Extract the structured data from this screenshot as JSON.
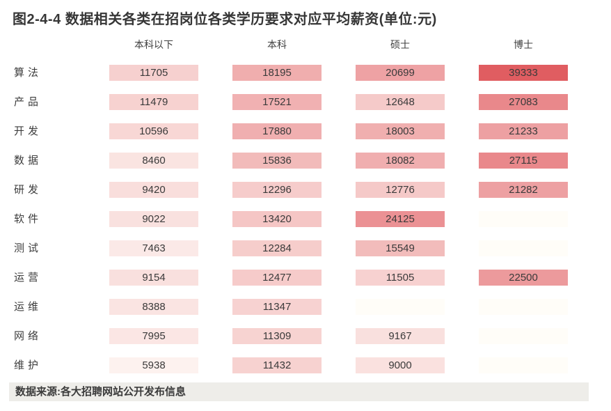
{
  "title": "图2-4-4 数据相关各类在招岗位各类学历要求对应平均薪资(单位:元)",
  "source_note": "数据来源:各大招聘网站公开发布信息",
  "colors": {
    "background": "#ffffff",
    "title_text": "#363636",
    "header_text": "#3f3f3f",
    "label_text": "#3d3d3d",
    "cell_text": "#3a3a3a",
    "source_bar_background": "#eeede9",
    "source_text": "#3b3b3b",
    "heat_min": "#fffdf8",
    "heat_max": "#e05d61"
  },
  "chart_data": {
    "type": "heatmap",
    "title": "图2-4-4 数据相关各类在招岗位各类学历要求对应平均薪资(单位:元)",
    "unit": "元",
    "columns": [
      "本科以下",
      "本科",
      "硕士",
      "博士"
    ],
    "rows": [
      "算法",
      "产品",
      "开发",
      "数据",
      "研发",
      "软件",
      "测试",
      "运营",
      "运维",
      "网络",
      "维护"
    ],
    "values": [
      [
        11705,
        18195,
        20699,
        39333
      ],
      [
        11479,
        17521,
        12648,
        27083
      ],
      [
        10596,
        17880,
        18003,
        21233
      ],
      [
        8460,
        15836,
        18082,
        27115
      ],
      [
        9420,
        12296,
        12776,
        21282
      ],
      [
        9022,
        13420,
        24125,
        null
      ],
      [
        7463,
        12284,
        15549,
        null
      ],
      [
        9154,
        12477,
        11505,
        22500
      ],
      [
        8388,
        11347,
        null,
        null
      ],
      [
        7995,
        11309,
        9167,
        null
      ],
      [
        5938,
        11432,
        9000,
        null
      ]
    ],
    "value_range": [
      0,
      39333
    ],
    "legend": "none",
    "grid": false,
    "colormap": {
      "stops": [
        [
          0,
          "#fffdf8"
        ],
        [
          5500,
          "#fdf4f1"
        ],
        [
          9500,
          "#f9dedc"
        ],
        [
          13000,
          "#f5c8c7"
        ],
        [
          16000,
          "#f2bab9"
        ],
        [
          18500,
          "#f0acad"
        ],
        [
          21500,
          "#ed9fa1"
        ],
        [
          24500,
          "#eb8f92"
        ],
        [
          27500,
          "#e9878a"
        ],
        [
          39333,
          "#e05d61"
        ]
      ]
    },
    "source_note": "数据来源:各大招聘网站公开发布信息"
  }
}
